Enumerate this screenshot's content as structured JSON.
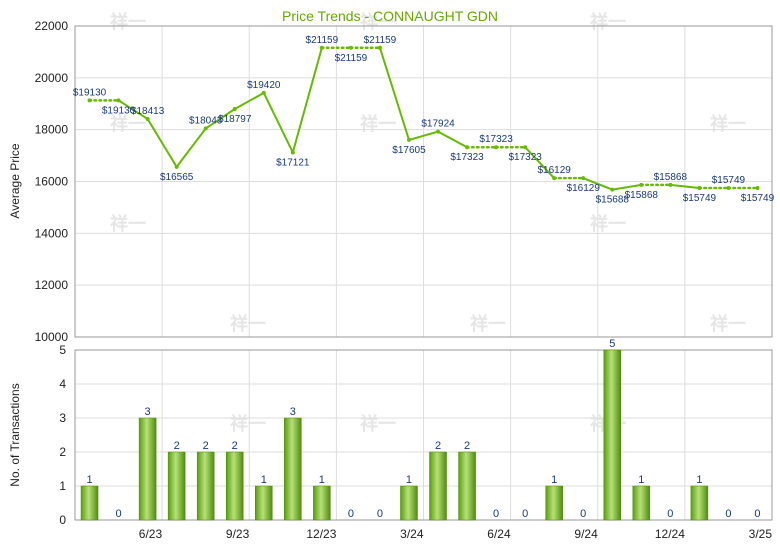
{
  "chart_data": [
    {
      "type": "line",
      "title": "Price Trends - CONNAUGHT GDN",
      "ylabel": "Average Price",
      "xlabel": "",
      "ylim": [
        10000,
        22000
      ],
      "yticks": [
        "10000",
        "12000",
        "14000",
        "16000",
        "18000",
        "20000",
        "22000"
      ],
      "grid": true,
      "color": "#66bb00",
      "points": [
        {
          "v": 19130,
          "label": "$19130",
          "estimated": false
        },
        {
          "v": 19130,
          "label": "$19130",
          "estimated": true
        },
        {
          "v": 18413,
          "label": "$18413",
          "estimated": false
        },
        {
          "v": 16565,
          "label": "$16565",
          "estimated": false
        },
        {
          "v": 18043,
          "label": "$18043",
          "estimated": false
        },
        {
          "v": 18797,
          "label": "$18797",
          "estimated": false
        },
        {
          "v": 19420,
          "label": "$19420",
          "estimated": false
        },
        {
          "v": 17121,
          "label": "$17121",
          "estimated": false
        },
        {
          "v": 21159,
          "label": "$21159",
          "estimated": false
        },
        {
          "v": 21159,
          "label": "$21159",
          "estimated": true
        },
        {
          "v": 21159,
          "label": "$21159",
          "estimated": true
        },
        {
          "v": 17605,
          "label": "$17605",
          "estimated": false
        },
        {
          "v": 17924,
          "label": "$17924",
          "estimated": false
        },
        {
          "v": 17323,
          "label": "$17323",
          "estimated": false
        },
        {
          "v": 17323,
          "label": "$17323",
          "estimated": true
        },
        {
          "v": 17323,
          "label": "$17323",
          "estimated": true
        },
        {
          "v": 16129,
          "label": "$16129",
          "estimated": false
        },
        {
          "v": 16129,
          "label": "$16129",
          "estimated": true
        },
        {
          "v": 15688,
          "label": "$15688",
          "estimated": false
        },
        {
          "v": 15868,
          "label": "$15868",
          "estimated": false
        },
        {
          "v": 15868,
          "label": "$15868",
          "estimated": true
        },
        {
          "v": 15749,
          "label": "$15749",
          "estimated": false
        },
        {
          "v": 15749,
          "label": "$15749",
          "estimated": true
        },
        {
          "v": 15749,
          "label": "$15749",
          "estimated": true
        }
      ]
    },
    {
      "type": "bar",
      "ylabel": "No. of Transactions",
      "xlabel": "",
      "ylim": [
        0,
        5
      ],
      "yticks": [
        "0",
        "1",
        "2",
        "3",
        "4",
        "5"
      ],
      "xticks": [
        {
          "index": 2,
          "label": "6/23"
        },
        {
          "index": 5,
          "label": "9/23"
        },
        {
          "index": 8,
          "label": "12/23"
        },
        {
          "index": 11,
          "label": "3/24"
        },
        {
          "index": 14,
          "label": "6/24"
        },
        {
          "index": 17,
          "label": "9/24"
        },
        {
          "index": 20,
          "label": "12/24"
        },
        {
          "index": 23,
          "label": "3/25"
        }
      ],
      "grid": true,
      "color": "#77bb22",
      "values": [
        1,
        0,
        3,
        2,
        2,
        2,
        1,
        3,
        1,
        0,
        0,
        1,
        2,
        2,
        0,
        0,
        1,
        0,
        5,
        1,
        0,
        1,
        0,
        0
      ]
    }
  ],
  "watermark": "祥一"
}
